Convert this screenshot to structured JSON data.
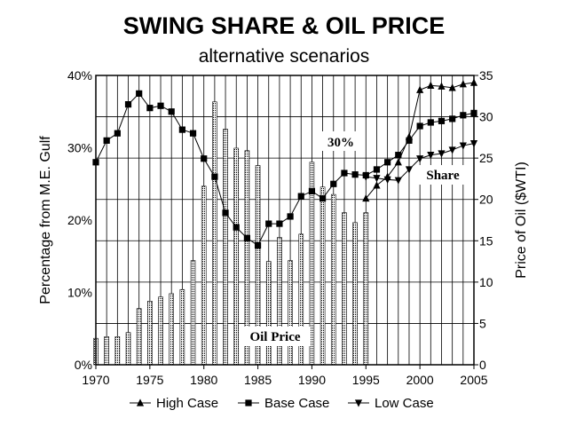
{
  "chart_data": {
    "type": "bar+line",
    "title": "SWING SHARE & OIL PRICE",
    "subtitle": "alternative scenarios",
    "xlabel": "",
    "ylabel_left": "Percentage from M.E. Gulf",
    "ylabel_right": "Price of Oil ($WTI)",
    "xlim": [
      1970,
      2005
    ],
    "x_ticks": [
      1970,
      1975,
      1980,
      1985,
      1990,
      1995,
      2000,
      2005
    ],
    "ylim_left": [
      0,
      40
    ],
    "y_ticks_left": [
      "0%",
      "10%",
      "20%",
      "30%",
      "40%"
    ],
    "ylim_right": [
      0,
      35
    ],
    "y_ticks_right": [
      0,
      5,
      10,
      15,
      20,
      25,
      30,
      35
    ],
    "grid": true,
    "legend_position": "bottom",
    "annotations": {
      "share_level": "30%",
      "share": "Share",
      "oil_price": "Oil Price"
    },
    "oil_price_bars": {
      "name": "Oil Price",
      "axis": "right",
      "x": [
        1970,
        1971,
        1972,
        1973,
        1974,
        1975,
        1976,
        1977,
        1978,
        1979,
        1980,
        1981,
        1982,
        1983,
        1984,
        1985,
        1986,
        1987,
        1988,
        1989,
        1990,
        1991,
        1992,
        1993,
        1994,
        1995
      ],
      "values": [
        3.2,
        3.4,
        3.4,
        3.9,
        6.8,
        7.7,
        8.2,
        8.6,
        9.1,
        12.6,
        21.6,
        31.8,
        28.5,
        26.2,
        25.9,
        24.1,
        12.5,
        15.4,
        12.6,
        15.8,
        24.5,
        21.5,
        20.6,
        18.4,
        17.2,
        18.4
      ]
    },
    "series": [
      {
        "name": "High Case",
        "marker": "triangle-up",
        "x": [
          1995,
          1996,
          1997,
          1998,
          1999,
          2000,
          2001,
          2002,
          2003,
          2004,
          2005
        ],
        "values": [
          23.0,
          24.8,
          26.0,
          28.0,
          31.5,
          38.0,
          38.6,
          38.5,
          38.3,
          38.8,
          39.0
        ]
      },
      {
        "name": "Base Case",
        "marker": "square",
        "x": [
          1970,
          1971,
          1972,
          1973,
          1974,
          1975,
          1976,
          1977,
          1978,
          1979,
          1980,
          1981,
          1982,
          1983,
          1984,
          1985,
          1986,
          1987,
          1988,
          1989,
          1990,
          1991,
          1992,
          1993,
          1994,
          1995,
          1996,
          1997,
          1998,
          1999,
          2000,
          2001,
          2002,
          2003,
          2004,
          2005
        ],
        "values": [
          28.0,
          31.0,
          32.0,
          36.0,
          37.5,
          35.5,
          35.8,
          35.0,
          32.5,
          32.0,
          28.5,
          26.0,
          21.0,
          19.0,
          17.5,
          16.5,
          19.5,
          19.5,
          20.5,
          23.3,
          24.0,
          23.0,
          25.0,
          26.5,
          26.3,
          26.2,
          27.0,
          28.0,
          29.0,
          31.0,
          33.0,
          33.5,
          33.7,
          34.0,
          34.5,
          34.8
        ]
      },
      {
        "name": "Low Case",
        "marker": "triangle-down",
        "x": [
          1995,
          1996,
          1997,
          1998,
          1999,
          2000,
          2001,
          2002,
          2003,
          2004,
          2005
        ],
        "values": [
          26.0,
          25.8,
          25.6,
          25.5,
          27.0,
          28.5,
          29.0,
          29.2,
          29.7,
          30.3,
          30.6
        ]
      }
    ]
  }
}
